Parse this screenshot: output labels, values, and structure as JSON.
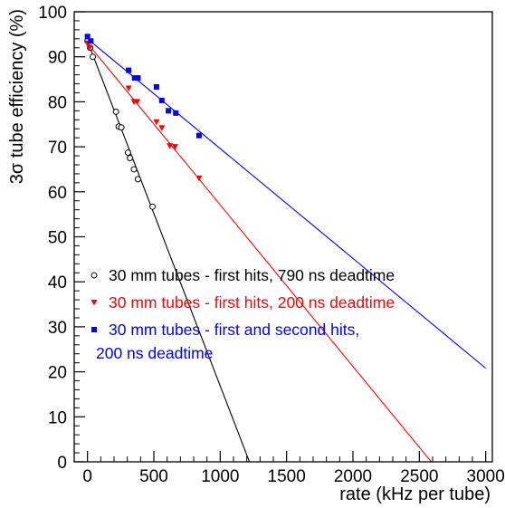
{
  "chart_data": {
    "type": "scatter",
    "title": "",
    "xlabel": "rate (kHz per tube)",
    "ylabel": "3σ tube efficiency (%)",
    "xlim": [
      -100,
      3050
    ],
    "ylim": [
      0,
      100
    ],
    "x_ticks": [
      0,
      500,
      1000,
      1500,
      2000,
      2500,
      3000
    ],
    "y_ticks": [
      0,
      10,
      20,
      30,
      40,
      50,
      60,
      70,
      80,
      90,
      100
    ],
    "grid": false,
    "legend_position": "center-left",
    "series": [
      {
        "name": "30 mm tubes - first hits, 790 ns deadtime",
        "color": "#000000",
        "marker": "open-circle",
        "points": [
          [
            0,
            93.5
          ],
          [
            20,
            92
          ],
          [
            40,
            90
          ],
          [
            215,
            77.8
          ],
          [
            235,
            74.5
          ],
          [
            255,
            74.3
          ],
          [
            305,
            68.7
          ],
          [
            320,
            67.5
          ],
          [
            350,
            65
          ],
          [
            380,
            62.8
          ],
          [
            490,
            56.7
          ]
        ],
        "fit_line": [
          [
            0,
            93.5
          ],
          [
            1220,
            0
          ]
        ]
      },
      {
        "name": "30 mm tubes - first hits, 200 ns deadtime",
        "color": "#ff0000",
        "marker": "filled-triangle-down",
        "points": [
          [
            0,
            93
          ],
          [
            15,
            92
          ],
          [
            310,
            83
          ],
          [
            350,
            80
          ],
          [
            375,
            80
          ],
          [
            520,
            75.5
          ],
          [
            560,
            74.2
          ],
          [
            620,
            70.2
          ],
          [
            660,
            70
          ],
          [
            840,
            63
          ]
        ],
        "fit_line": [
          [
            0,
            93
          ],
          [
            2590,
            0
          ]
        ]
      },
      {
        "name": "30 mm tubes - first and second hits, 200 ns deadtime",
        "name_lines": [
          "30 mm tubes - first and second hits,",
          "200 ns deadtime"
        ],
        "color": "#0000ff",
        "marker": "filled-square",
        "points": [
          [
            0,
            94.5
          ],
          [
            25,
            93.5
          ],
          [
            310,
            87
          ],
          [
            355,
            85.3
          ],
          [
            380,
            85.3
          ],
          [
            520,
            83.3
          ],
          [
            560,
            80.3
          ],
          [
            610,
            78
          ],
          [
            665,
            77.5
          ],
          [
            840,
            72.5
          ]
        ],
        "fit_line": [
          [
            0,
            94
          ],
          [
            3000,
            20.8
          ]
        ]
      }
    ]
  }
}
